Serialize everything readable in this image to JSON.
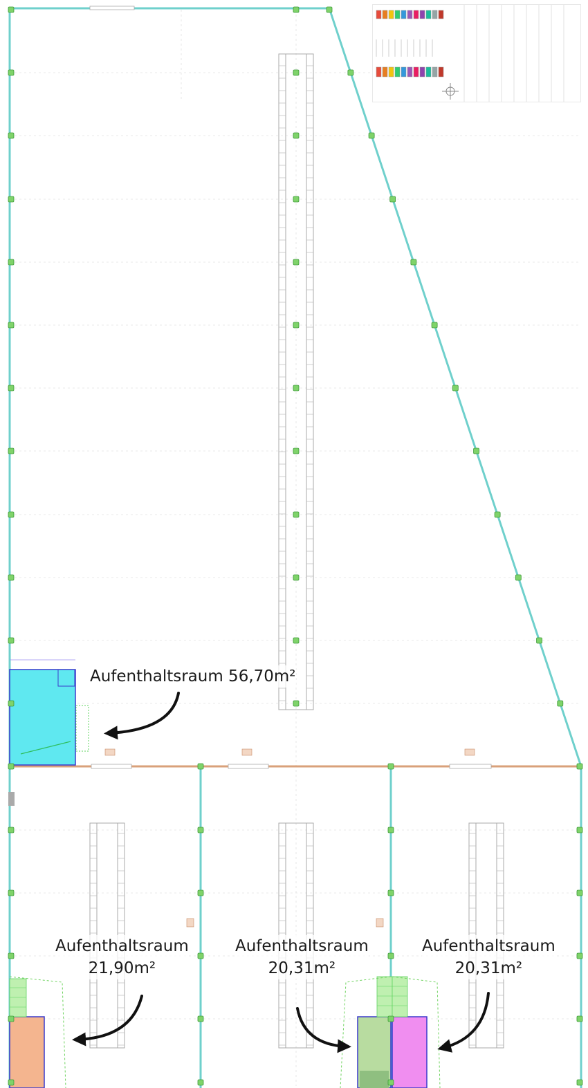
{
  "callouts": {
    "main_room": {
      "text": "Aufenthaltsraum 56,70m²"
    },
    "room_a": {
      "line1": "Aufenthaltsraum",
      "line2": "21,90m²"
    },
    "room_b": {
      "line1": "Aufenthaltsraum",
      "line2": "20,31m²"
    },
    "room_c": {
      "line1": "Aufenthaltsraum",
      "line2": "20,31m²"
    }
  },
  "colors": {
    "outer_wall": "#6fd0cc",
    "inner_wall": "#d9a07a",
    "column_marker": "#7fd36a",
    "main_room_fill": "#5fe8f0",
    "room_a_fill": "#f4b58f",
    "room_b_fill": "#b8dca0",
    "room_c_fill": "#f08ef0",
    "stair_fill": "#bff0b0",
    "arrow": "#111111",
    "legend_swatches": [
      "#e74c3c",
      "#e67e22",
      "#f1c40f",
      "#2ecc71",
      "#3498db",
      "#9b59b6",
      "#e91e63",
      "#8e44ad",
      "#1abc9c",
      "#95a5a6",
      "#c0392b"
    ]
  }
}
